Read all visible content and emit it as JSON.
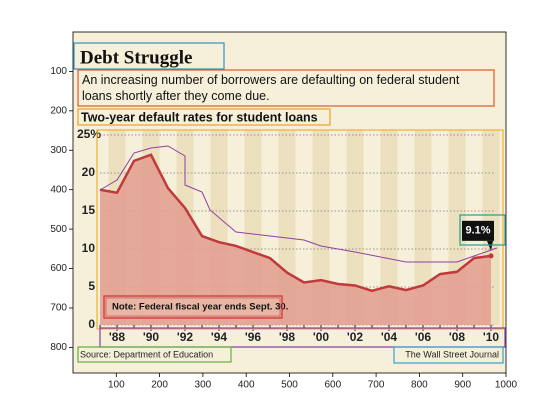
{
  "chart_data": [
    {
      "type": "image",
      "xlim": [
        0,
        1000
      ],
      "ylim": [
        865,
        0
      ],
      "xticks": [
        100,
        200,
        300,
        400,
        500,
        600,
        700,
        800,
        900,
        1000
      ],
      "yticks": [
        100,
        200,
        300,
        400,
        500,
        600,
        700,
        800
      ]
    },
    {
      "type": "area",
      "title": "Debt Struggle",
      "subtitle": "An increasing number of borrowers are defaulting on federal student loans shortly after they come due.",
      "chart_label": "Two-year default rates for student loans",
      "note": "Note: Federal fiscal year ends Sept. 30.",
      "source": "Source: Department of Education",
      "credit": "The Wall Street Journal",
      "callout": "9.1%",
      "categories": [
        null,
        "'88",
        null,
        "'90",
        null,
        "'92",
        null,
        "'94",
        null,
        "'96",
        null,
        "'98",
        null,
        "'00",
        null,
        "'02",
        null,
        "'04",
        null,
        "'06",
        null,
        "'08",
        null,
        "'10"
      ],
      "values": [
        17.8,
        17.4,
        21.6,
        22.4,
        18.0,
        15.4,
        11.7,
        10.9,
        10.4,
        9.6,
        8.8,
        6.9,
        5.6,
        5.9,
        5.4,
        5.2,
        4.5,
        5.1,
        4.6,
        5.2,
        6.7,
        7.0,
        8.8,
        9.1
      ],
      "color": "#c0393b",
      "fill": "#e3a192",
      "ylim": [
        0,
        25
      ],
      "yticks": [
        0,
        5,
        10,
        15,
        20,
        {
          "value": 25,
          "label": "25%"
        }
      ],
      "grid": true
    }
  ]
}
